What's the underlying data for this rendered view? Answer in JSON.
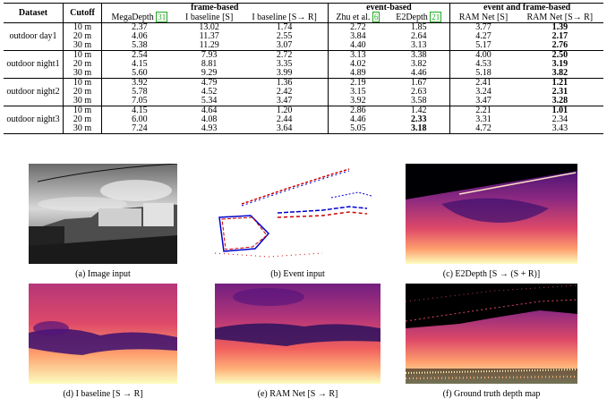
{
  "table": {
    "header": {
      "dataset": "Dataset",
      "cutoff": "Cutoff",
      "group_frame": "frame-based",
      "group_event": "event-based",
      "group_both": "event and frame-based",
      "col_megadepth": "MegaDepth",
      "ref_megadepth": "31",
      "col_ibase_s": "I baseline [S]",
      "col_ibase_sr": "I baseline [S→ R]",
      "col_zhu": "Zhu et al.",
      "ref_zhu": "6",
      "col_e2depth": "E2Depth",
      "ref_e2depth": "21",
      "col_ram_s": "RAM Net [S]",
      "col_ram_sr": "RAM Net [S→ R]"
    },
    "groups": [
      {
        "name": "outdoor day1",
        "rows": [
          {
            "cutoff": "10 m",
            "v": [
              "2.37",
              "13.02",
              "1.74",
              "2.72",
              "1.85",
              "3.77",
              "1.39"
            ],
            "bold": [
              6
            ]
          },
          {
            "cutoff": "20 m",
            "v": [
              "4.06",
              "11.37",
              "2.55",
              "3.84",
              "2.64",
              "4.27",
              "2.17"
            ],
            "bold": [
              6
            ]
          },
          {
            "cutoff": "30 m",
            "v": [
              "5.38",
              "11.29",
              "3.07",
              "4.40",
              "3.13",
              "5.17",
              "2.76"
            ],
            "bold": [
              6
            ]
          }
        ]
      },
      {
        "name": "outdoor night1",
        "rows": [
          {
            "cutoff": "10 m",
            "v": [
              "2.54",
              "7.93",
              "2.72",
              "3.13",
              "3.38",
              "4.00",
              "2.50"
            ],
            "bold": [
              6
            ]
          },
          {
            "cutoff": "20 m",
            "v": [
              "4.15",
              "8.81",
              "3.35",
              "4.02",
              "3.82",
              "4.53",
              "3.19"
            ],
            "bold": [
              6
            ]
          },
          {
            "cutoff": "30 m",
            "v": [
              "5.60",
              "9.29",
              "3.99",
              "4.89",
              "4.46",
              "5.18",
              "3.82"
            ],
            "bold": [
              6
            ]
          }
        ]
      },
      {
        "name": "outdoor night2",
        "rows": [
          {
            "cutoff": "10 m",
            "v": [
              "3.92",
              "4.79",
              "1.36",
              "2.19",
              "1.67",
              "2.41",
              "1.21"
            ],
            "bold": [
              6
            ]
          },
          {
            "cutoff": "20 m",
            "v": [
              "5.78",
              "4.52",
              "2.42",
              "3.15",
              "2.63",
              "3.24",
              "2.31"
            ],
            "bold": [
              6
            ]
          },
          {
            "cutoff": "30 m",
            "v": [
              "7.05",
              "5.34",
              "3.47",
              "3.92",
              "3.58",
              "3.47",
              "3.28"
            ],
            "bold": [
              6
            ]
          }
        ]
      },
      {
        "name": "outdoor night3",
        "rows": [
          {
            "cutoff": "10 m",
            "v": [
              "4.15",
              "4.64",
              "1.20",
              "2.86",
              "1.42",
              "2.21",
              "1.01"
            ],
            "bold": [
              6
            ]
          },
          {
            "cutoff": "20 m",
            "v": [
              "6.00",
              "4.08",
              "2.44",
              "4.46",
              "2.33",
              "3.31",
              "2.34"
            ],
            "bold": [
              4
            ]
          },
          {
            "cutoff": "30 m",
            "v": [
              "7.24",
              "4.93",
              "3.64",
              "5.05",
              "3.18",
              "4.72",
              "3.43"
            ],
            "bold": [
              4
            ]
          }
        ]
      }
    ]
  },
  "figures": {
    "a": "(a) Image input",
    "b": "(b) Event input",
    "c": "(c) E2Depth [S → (S + R)]",
    "d": "(d) I baseline [S → R]",
    "e": "(e) RAM Net [S → R]",
    "f": "(f) Ground truth depth map"
  },
  "colors": {
    "citation_box": "#22aa22"
  }
}
